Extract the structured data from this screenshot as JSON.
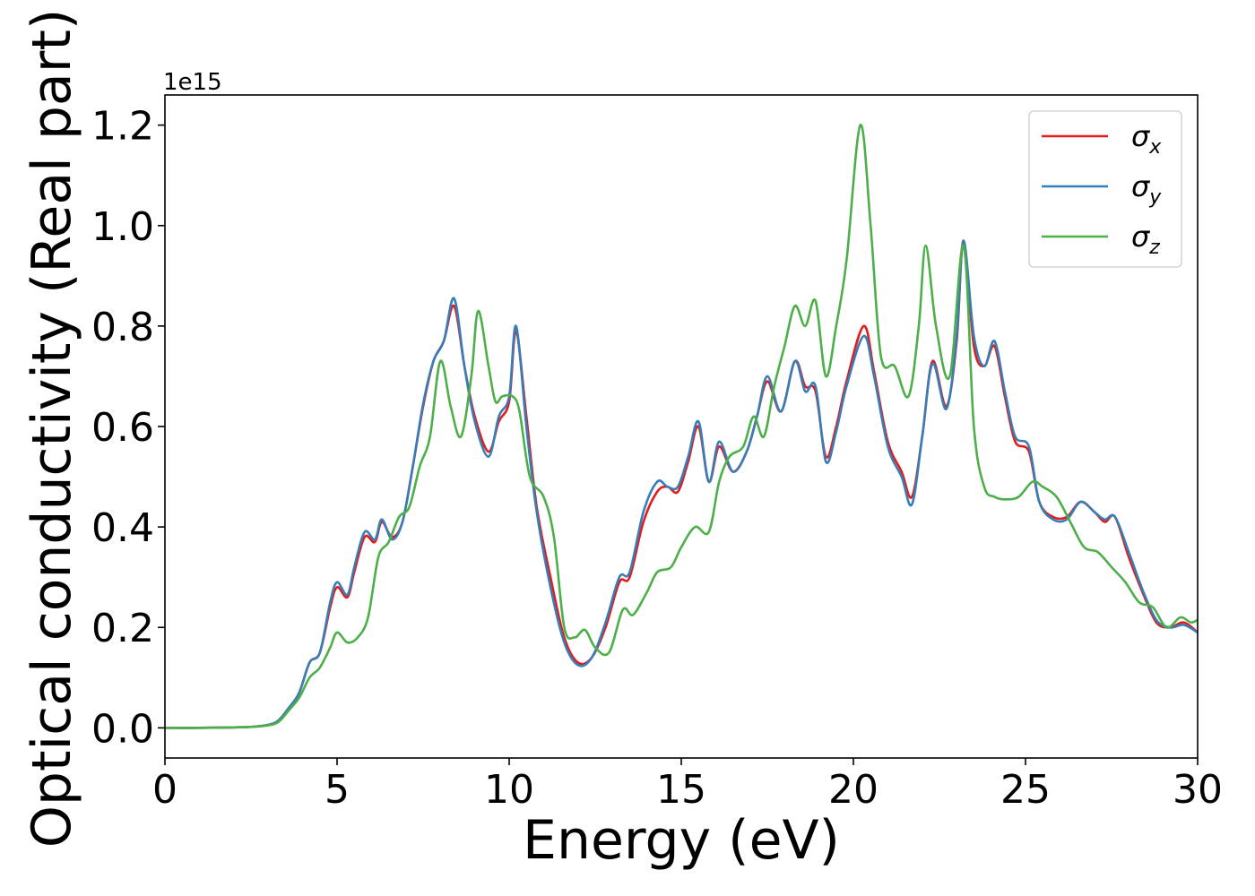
{
  "chart_data": {
    "type": "line",
    "title": "",
    "xlabel": "Energy (eV)",
    "ylabel": "Optical conductivity (Real part)",
    "y_offset_label": "1e15",
    "xlim": [
      0,
      30
    ],
    "ylim": [
      -0.06,
      1.26
    ],
    "x_ticks": [
      0,
      5,
      10,
      15,
      20,
      25,
      30
    ],
    "y_ticks": [
      0.0,
      0.2,
      0.4,
      0.6,
      0.8,
      1.0,
      1.2
    ],
    "x_tick_labels": [
      "0",
      "5",
      "10",
      "15",
      "20",
      "25",
      "30"
    ],
    "y_tick_labels": [
      "0.0",
      "0.2",
      "0.4",
      "0.6",
      "0.8",
      "1.0",
      "1.2"
    ],
    "grid": false,
    "legend": "top-right",
    "series": [
      {
        "name": "σx",
        "symbol": "σ",
        "subscript": "x",
        "color": "#e41a1c",
        "points": [
          [
            0,
            0
          ],
          [
            1,
            0
          ],
          [
            2,
            0.001
          ],
          [
            2.5,
            0.002
          ],
          [
            3,
            0.006
          ],
          [
            3.3,
            0.015
          ],
          [
            3.6,
            0.04
          ],
          [
            3.9,
            0.07
          ],
          [
            4.2,
            0.13
          ],
          [
            4.5,
            0.15
          ],
          [
            4.8,
            0.24
          ],
          [
            5,
            0.28
          ],
          [
            5.3,
            0.26
          ],
          [
            5.5,
            0.31
          ],
          [
            5.8,
            0.38
          ],
          [
            6.1,
            0.37
          ],
          [
            6.3,
            0.41
          ],
          [
            6.6,
            0.38
          ],
          [
            6.9,
            0.41
          ],
          [
            7.2,
            0.52
          ],
          [
            7.5,
            0.64
          ],
          [
            7.8,
            0.73
          ],
          [
            8.1,
            0.77
          ],
          [
            8.4,
            0.84
          ],
          [
            8.7,
            0.72
          ],
          [
            9,
            0.62
          ],
          [
            9.4,
            0.55
          ],
          [
            9.7,
            0.61
          ],
          [
            10,
            0.65
          ],
          [
            10.2,
            0.79
          ],
          [
            10.5,
            0.62
          ],
          [
            10.8,
            0.44
          ],
          [
            11.2,
            0.3
          ],
          [
            11.6,
            0.18
          ],
          [
            12,
            0.13
          ],
          [
            12.4,
            0.14
          ],
          [
            12.8,
            0.2
          ],
          [
            13.2,
            0.29
          ],
          [
            13.5,
            0.3
          ],
          [
            13.9,
            0.41
          ],
          [
            14.3,
            0.47
          ],
          [
            14.6,
            0.48
          ],
          [
            14.9,
            0.47
          ],
          [
            15.2,
            0.53
          ],
          [
            15.5,
            0.6
          ],
          [
            15.8,
            0.49
          ],
          [
            16.1,
            0.56
          ],
          [
            16.5,
            0.51
          ],
          [
            16.9,
            0.55
          ],
          [
            17.2,
            0.62
          ],
          [
            17.5,
            0.69
          ],
          [
            17.9,
            0.63
          ],
          [
            18.3,
            0.73
          ],
          [
            18.6,
            0.68
          ],
          [
            18.9,
            0.67
          ],
          [
            19.2,
            0.54
          ],
          [
            19.5,
            0.6
          ],
          [
            19.8,
            0.69
          ],
          [
            20.3,
            0.8
          ],
          [
            20.6,
            0.71
          ],
          [
            21,
            0.57
          ],
          [
            21.4,
            0.51
          ],
          [
            21.7,
            0.46
          ],
          [
            22,
            0.58
          ],
          [
            22.3,
            0.73
          ],
          [
            22.7,
            0.64
          ],
          [
            23,
            0.77
          ],
          [
            23.2,
            0.97
          ],
          [
            23.5,
            0.76
          ],
          [
            23.8,
            0.72
          ],
          [
            24.1,
            0.76
          ],
          [
            24.4,
            0.66
          ],
          [
            24.7,
            0.57
          ],
          [
            25.1,
            0.55
          ],
          [
            25.4,
            0.45
          ],
          [
            25.8,
            0.42
          ],
          [
            26.2,
            0.42
          ],
          [
            26.6,
            0.45
          ],
          [
            27,
            0.43
          ],
          [
            27.3,
            0.41
          ],
          [
            27.6,
            0.42
          ],
          [
            28,
            0.34
          ],
          [
            28.4,
            0.27
          ],
          [
            28.8,
            0.21
          ],
          [
            29.2,
            0.2
          ],
          [
            29.6,
            0.21
          ],
          [
            30,
            0.19
          ]
        ]
      },
      {
        "name": "σy",
        "symbol": "σ",
        "subscript": "y",
        "color": "#377eb8",
        "points": [
          [
            0,
            0
          ],
          [
            1,
            0
          ],
          [
            2,
            0.001
          ],
          [
            2.5,
            0.002
          ],
          [
            3,
            0.006
          ],
          [
            3.3,
            0.015
          ],
          [
            3.6,
            0.04
          ],
          [
            3.9,
            0.07
          ],
          [
            4.2,
            0.13
          ],
          [
            4.5,
            0.15
          ],
          [
            4.8,
            0.25
          ],
          [
            5,
            0.29
          ],
          [
            5.3,
            0.265
          ],
          [
            5.5,
            0.32
          ],
          [
            5.8,
            0.39
          ],
          [
            6.1,
            0.375
          ],
          [
            6.3,
            0.415
          ],
          [
            6.6,
            0.375
          ],
          [
            6.9,
            0.41
          ],
          [
            7.2,
            0.52
          ],
          [
            7.5,
            0.645
          ],
          [
            7.8,
            0.73
          ],
          [
            8.1,
            0.77
          ],
          [
            8.4,
            0.855
          ],
          [
            8.7,
            0.72
          ],
          [
            9,
            0.61
          ],
          [
            9.4,
            0.54
          ],
          [
            9.7,
            0.62
          ],
          [
            10,
            0.66
          ],
          [
            10.2,
            0.8
          ],
          [
            10.5,
            0.6
          ],
          [
            10.8,
            0.43
          ],
          [
            11.2,
            0.28
          ],
          [
            11.6,
            0.17
          ],
          [
            12,
            0.125
          ],
          [
            12.4,
            0.14
          ],
          [
            12.8,
            0.21
          ],
          [
            13.2,
            0.3
          ],
          [
            13.5,
            0.31
          ],
          [
            13.9,
            0.43
          ],
          [
            14.3,
            0.49
          ],
          [
            14.6,
            0.48
          ],
          [
            14.9,
            0.48
          ],
          [
            15.2,
            0.54
          ],
          [
            15.5,
            0.61
          ],
          [
            15.8,
            0.49
          ],
          [
            16.1,
            0.57
          ],
          [
            16.5,
            0.51
          ],
          [
            16.9,
            0.55
          ],
          [
            17.2,
            0.62
          ],
          [
            17.5,
            0.7
          ],
          [
            17.9,
            0.63
          ],
          [
            18.3,
            0.73
          ],
          [
            18.6,
            0.67
          ],
          [
            18.9,
            0.68
          ],
          [
            19.2,
            0.53
          ],
          [
            19.5,
            0.59
          ],
          [
            19.8,
            0.68
          ],
          [
            20.3,
            0.78
          ],
          [
            20.6,
            0.7
          ],
          [
            21,
            0.56
          ],
          [
            21.4,
            0.5
          ],
          [
            21.7,
            0.445
          ],
          [
            22,
            0.58
          ],
          [
            22.3,
            0.725
          ],
          [
            22.7,
            0.635
          ],
          [
            23,
            0.78
          ],
          [
            23.2,
            0.97
          ],
          [
            23.5,
            0.78
          ],
          [
            23.8,
            0.72
          ],
          [
            24.1,
            0.77
          ],
          [
            24.4,
            0.67
          ],
          [
            24.7,
            0.58
          ],
          [
            25.1,
            0.56
          ],
          [
            25.4,
            0.45
          ],
          [
            25.8,
            0.415
          ],
          [
            26.2,
            0.415
          ],
          [
            26.6,
            0.45
          ],
          [
            27,
            0.43
          ],
          [
            27.3,
            0.415
          ],
          [
            27.6,
            0.42
          ],
          [
            28,
            0.35
          ],
          [
            28.4,
            0.275
          ],
          [
            28.8,
            0.215
          ],
          [
            29.2,
            0.2
          ],
          [
            29.6,
            0.205
          ],
          [
            30,
            0.19
          ]
        ]
      },
      {
        "name": "σz",
        "symbol": "σ",
        "subscript": "z",
        "color": "#4daf4a",
        "points": [
          [
            0,
            0
          ],
          [
            1,
            0
          ],
          [
            2,
            0.001
          ],
          [
            2.5,
            0.002
          ],
          [
            3,
            0.005
          ],
          [
            3.3,
            0.012
          ],
          [
            3.6,
            0.035
          ],
          [
            3.9,
            0.06
          ],
          [
            4.2,
            0.1
          ],
          [
            4.5,
            0.12
          ],
          [
            4.8,
            0.16
          ],
          [
            5,
            0.19
          ],
          [
            5.3,
            0.17
          ],
          [
            5.6,
            0.18
          ],
          [
            5.9,
            0.22
          ],
          [
            6.2,
            0.34
          ],
          [
            6.5,
            0.37
          ],
          [
            6.8,
            0.42
          ],
          [
            7.1,
            0.44
          ],
          [
            7.4,
            0.52
          ],
          [
            7.7,
            0.58
          ],
          [
            8,
            0.73
          ],
          [
            8.3,
            0.64
          ],
          [
            8.6,
            0.58
          ],
          [
            8.9,
            0.7
          ],
          [
            9.1,
            0.83
          ],
          [
            9.4,
            0.72
          ],
          [
            9.6,
            0.65
          ],
          [
            9.8,
            0.66
          ],
          [
            10.1,
            0.66
          ],
          [
            10.3,
            0.63
          ],
          [
            10.6,
            0.5
          ],
          [
            11,
            0.46
          ],
          [
            11.3,
            0.38
          ],
          [
            11.6,
            0.2
          ],
          [
            11.9,
            0.18
          ],
          [
            12.2,
            0.195
          ],
          [
            12.5,
            0.16
          ],
          [
            12.9,
            0.15
          ],
          [
            13.3,
            0.235
          ],
          [
            13.6,
            0.225
          ],
          [
            14,
            0.27
          ],
          [
            14.3,
            0.31
          ],
          [
            14.7,
            0.32
          ],
          [
            15,
            0.36
          ],
          [
            15.4,
            0.4
          ],
          [
            15.8,
            0.39
          ],
          [
            16.1,
            0.49
          ],
          [
            16.4,
            0.54
          ],
          [
            16.8,
            0.56
          ],
          [
            17.1,
            0.62
          ],
          [
            17.4,
            0.58
          ],
          [
            17.7,
            0.68
          ],
          [
            18,
            0.76
          ],
          [
            18.3,
            0.84
          ],
          [
            18.6,
            0.8
          ],
          [
            18.9,
            0.85
          ],
          [
            19.2,
            0.7
          ],
          [
            19.5,
            0.8
          ],
          [
            19.8,
            0.93
          ],
          [
            20.2,
            1.2
          ],
          [
            20.5,
            1.0
          ],
          [
            20.8,
            0.74
          ],
          [
            21.2,
            0.72
          ],
          [
            21.6,
            0.66
          ],
          [
            21.9,
            0.8
          ],
          [
            22.1,
            0.96
          ],
          [
            22.4,
            0.8
          ],
          [
            22.8,
            0.7
          ],
          [
            23.2,
            0.96
          ],
          [
            23.5,
            0.6
          ],
          [
            23.8,
            0.48
          ],
          [
            24.1,
            0.46
          ],
          [
            24.4,
            0.455
          ],
          [
            24.8,
            0.46
          ],
          [
            25.2,
            0.49
          ],
          [
            25.5,
            0.48
          ],
          [
            25.9,
            0.46
          ],
          [
            26.3,
            0.41
          ],
          [
            26.7,
            0.36
          ],
          [
            27.1,
            0.35
          ],
          [
            27.5,
            0.32
          ],
          [
            27.9,
            0.29
          ],
          [
            28.3,
            0.25
          ],
          [
            28.7,
            0.24
          ],
          [
            29.1,
            0.2
          ],
          [
            29.5,
            0.22
          ],
          [
            29.8,
            0.21
          ],
          [
            30,
            0.215
          ]
        ]
      }
    ]
  }
}
